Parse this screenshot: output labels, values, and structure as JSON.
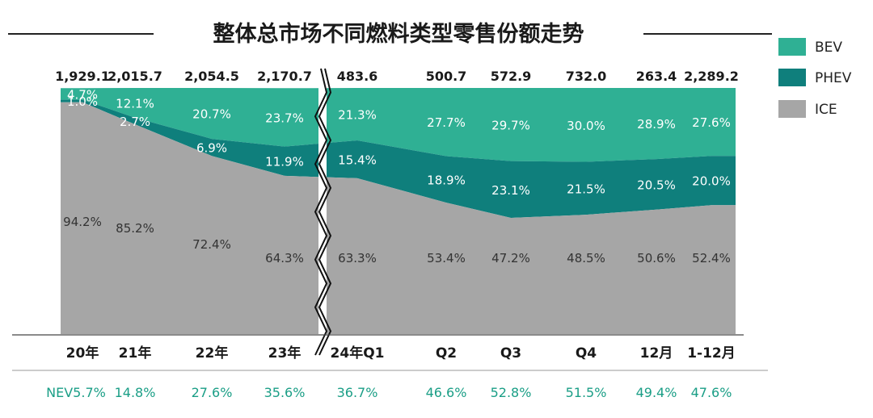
{
  "chart_data": {
    "type": "area",
    "title": "整体总市场不同燃料类型零售份额走势",
    "categories": [
      "20年",
      "21年",
      "22年",
      "23年",
      "24年Q1",
      "Q2",
      "Q3",
      "Q4",
      "12月",
      "1-12月"
    ],
    "totals": [
      "1,929.1",
      "2,015.7",
      "2,054.5",
      "2,170.7",
      "483.6",
      "500.7",
      "572.9",
      "732.0",
      "263.4",
      "2,289.2"
    ],
    "stacking": "percent",
    "ylim": [
      0,
      100
    ],
    "axis_break_between": [
      "23年",
      "24年Q1"
    ],
    "series": [
      {
        "name": "ICE",
        "color": "#a6a6a6",
        "values": [
          94.2,
          85.2,
          72.4,
          64.3,
          63.3,
          53.4,
          47.2,
          48.5,
          50.6,
          52.4
        ]
      },
      {
        "name": "PHEV",
        "color": "#0f7f7c",
        "values": [
          1.0,
          2.7,
          6.9,
          11.9,
          15.4,
          18.9,
          23.1,
          21.5,
          20.5,
          20.0
        ]
      },
      {
        "name": "BEV",
        "color": "#2fb094",
        "values": [
          4.7,
          12.1,
          20.7,
          23.7,
          21.3,
          27.7,
          29.7,
          30.0,
          28.9,
          27.6
        ]
      }
    ],
    "legend": {
      "position": "right",
      "items": [
        "BEV",
        "PHEV",
        "ICE"
      ]
    },
    "nev_row": {
      "prefix": "NEV",
      "values": [
        "5.7%",
        "14.8%",
        "27.6%",
        "35.6%",
        "36.7%",
        "46.6%",
        "52.8%",
        "51.5%",
        "49.4%",
        "47.6%"
      ],
      "color": "#1a9e86"
    }
  }
}
